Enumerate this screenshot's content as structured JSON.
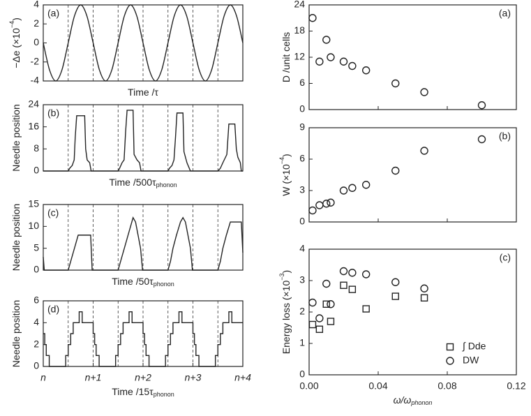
{
  "chart_data": [
    {
      "type": "line",
      "label": "(a)",
      "smooth": true,
      "xlabel": [
        "Time /τ"
      ],
      "ylabel": [
        "−Δe (×10",
        "−4",
        ")"
      ],
      "x": [
        0,
        0.125,
        0.25,
        0.375,
        0.5,
        0.625,
        0.75,
        0.875,
        1,
        1.125,
        1.25,
        1.375,
        1.5,
        1.625,
        1.75,
        1.875,
        2,
        2.125,
        2.25,
        2.375,
        2.5,
        2.625,
        2.75,
        2.875,
        3,
        3.125,
        3.25,
        3.375,
        3.5,
        3.625,
        3.75,
        3.875,
        4
      ],
      "values": [
        0,
        -2.83,
        -4,
        -2.83,
        0,
        2.83,
        4,
        2.83,
        0,
        -2.83,
        -4,
        -2.83,
        0,
        2.83,
        4,
        2.83,
        0,
        -2.83,
        -4,
        -2.83,
        0,
        2.83,
        4,
        2.83,
        0,
        -2.83,
        -4,
        -2.83,
        0,
        2.83,
        4,
        2.83,
        0
      ],
      "xlim": [
        0,
        4
      ],
      "ylim": [
        -4,
        4
      ],
      "yticks": [
        -4,
        -2,
        0,
        2,
        4
      ],
      "vlines": [
        0.5,
        1,
        1.5,
        2,
        2.5,
        3,
        3.5
      ],
      "color": "#222222"
    },
    {
      "type": "line",
      "label": "(b)",
      "xlabel": [
        "Time /500τ",
        "phonon"
      ],
      "ylabel": [
        "Needle position"
      ],
      "x": [
        0,
        0.5,
        0.53,
        0.58,
        0.62,
        0.64,
        0.67,
        0.83,
        0.85,
        0.88,
        0.93,
        0.96,
        1.5,
        1.53,
        1.58,
        1.62,
        1.65,
        1.68,
        1.8,
        1.82,
        1.88,
        1.93,
        1.96,
        2.5,
        2.53,
        2.58,
        2.62,
        2.65,
        2.68,
        2.8,
        2.82,
        2.88,
        2.95,
        3.5,
        3.55,
        3.6,
        3.68,
        3.72,
        3.84,
        3.87,
        3.9,
        3.95,
        3.97,
        4
      ],
      "values": [
        0,
        0,
        1,
        2,
        4,
        12,
        20,
        20,
        8,
        4,
        3,
        0,
        0,
        1,
        3,
        4,
        14,
        22,
        22,
        6,
        4,
        3,
        0,
        0,
        1,
        2,
        4,
        12,
        21,
        21,
        7,
        3,
        0,
        0,
        1,
        3,
        6,
        17,
        17,
        8,
        5,
        3,
        0,
        0
      ],
      "xlim": [
        0,
        4
      ],
      "ylim": [
        0,
        24
      ],
      "yticks": [
        0,
        8,
        16,
        24
      ],
      "vlines": [
        0.5,
        1,
        1.5,
        2,
        2.5,
        3,
        3.5
      ],
      "color": "#222222"
    },
    {
      "type": "line",
      "label": "(c)",
      "xlabel": [
        "Time /50τ",
        "phonon"
      ],
      "ylabel": [
        "Needle position"
      ],
      "x": [
        0,
        0.02,
        0.5,
        0.55,
        0.6,
        0.65,
        0.7,
        0.95,
        0.98,
        1.5,
        1.55,
        1.6,
        1.65,
        1.7,
        1.75,
        1.8,
        1.85,
        1.9,
        1.95,
        1.99,
        2.5,
        2.55,
        2.6,
        2.67,
        2.75,
        2.8,
        2.85,
        2.9,
        2.95,
        2.99,
        3.5,
        3.55,
        3.6,
        3.67,
        3.75,
        3.8,
        3.97,
        4
      ],
      "values": [
        3,
        0,
        0,
        2,
        4,
        6,
        8,
        8,
        0,
        0,
        2,
        4,
        6,
        8,
        10,
        12,
        11,
        8,
        5,
        0,
        0,
        2,
        5,
        8,
        11,
        12,
        11,
        8,
        5,
        0,
        0,
        2,
        5,
        8,
        11,
        11,
        11,
        4
      ],
      "xlim": [
        0,
        4
      ],
      "ylim": [
        0,
        15
      ],
      "yticks": [
        0,
        5,
        10,
        15
      ],
      "vlines": [
        0.5,
        1,
        1.5,
        2,
        2.5,
        3,
        3.5
      ],
      "color": "#222222"
    },
    {
      "type": "line",
      "label": "(d)",
      "step": true,
      "xlabel": [
        "Time /15τ",
        "phonon"
      ],
      "ylabel": [
        "Needle position"
      ],
      "x": [
        0,
        0.03,
        0.06,
        0.12,
        0.45,
        0.5,
        0.55,
        0.6,
        0.72,
        0.78,
        1,
        1.03,
        1.06,
        1.12,
        1.45,
        1.5,
        1.55,
        1.6,
        1.72,
        1.78,
        2,
        2.03,
        2.06,
        2.12,
        2.45,
        2.5,
        2.55,
        2.6,
        2.72,
        2.78,
        3,
        3.03,
        3.06,
        3.12,
        3.45,
        3.5,
        3.55,
        3.6,
        3.72,
        3.78,
        4
      ],
      "values": [
        3,
        2,
        1,
        0,
        1,
        2,
        3,
        4,
        5,
        4,
        3,
        2,
        1,
        0,
        1,
        2,
        3,
        4,
        5,
        4,
        3,
        2,
        1,
        0,
        1,
        2,
        3,
        4,
        5,
        4,
        3,
        2,
        1,
        0,
        1,
        2,
        3,
        4,
        5,
        4,
        4
      ],
      "xlim": [
        0,
        4
      ],
      "ylim": [
        0,
        6
      ],
      "yticks": [
        0,
        2,
        4,
        6
      ],
      "xticks": [
        {
          "value": 0,
          "label": "n"
        },
        {
          "value": 1,
          "label": "n+1"
        },
        {
          "value": 2,
          "label": "n+2"
        },
        {
          "value": 3,
          "label": "n+3"
        },
        {
          "value": 4,
          "label": "n+4"
        }
      ],
      "vlines": [
        0.5,
        1,
        1.5,
        2,
        2.5,
        3,
        3.5
      ],
      "color": "#222222"
    },
    {
      "type": "scatter",
      "label": "(a)",
      "marker": "circle",
      "ylabel": [
        "D /unit cells"
      ],
      "x": [
        0.002,
        0.006,
        0.01,
        0.0125,
        0.02,
        0.025,
        0.033,
        0.05,
        0.0667,
        0.1
      ],
      "values": [
        21,
        11,
        16,
        12,
        11,
        10,
        9,
        6,
        4,
        1
      ],
      "xlim": [
        0,
        0.12
      ],
      "xticks": [
        {
          "value": 0,
          "label": "0.00"
        },
        {
          "value": 0.04,
          "label": "0.04"
        },
        {
          "value": 0.08,
          "label": "0.08"
        },
        {
          "value": 0.12,
          "label": "0.12"
        }
      ],
      "xticklabels": false,
      "ylim": [
        0,
        24
      ],
      "yticks": [
        0,
        6,
        12,
        18,
        24
      ],
      "color": "#222222"
    },
    {
      "type": "scatter",
      "label": "(b)",
      "marker": "circle",
      "ylabel": [
        "W (×10",
        "−4",
        ")"
      ],
      "x": [
        0.002,
        0.006,
        0.01,
        0.0125,
        0.02,
        0.025,
        0.033,
        0.05,
        0.0667,
        0.1
      ],
      "values": [
        1.1,
        1.6,
        1.75,
        1.85,
        3.0,
        3.25,
        3.55,
        4.9,
        6.8,
        7.9
      ],
      "xlim": [
        0,
        0.12
      ],
      "xticks": [
        {
          "value": 0,
          "label": "0.00"
        },
        {
          "value": 0.04,
          "label": "0.04"
        },
        {
          "value": 0.08,
          "label": "0.08"
        },
        {
          "value": 0.12,
          "label": "0.12"
        }
      ],
      "xticklabels": false,
      "ylim": [
        0,
        9
      ],
      "yticks": [
        0,
        3,
        6,
        9
      ],
      "color": "#222222"
    },
    {
      "type": "scatter",
      "label": "(c)",
      "ylabel": [
        "Energy loss (×10",
        "−3",
        ")"
      ],
      "xlabel": [
        "ω/ω",
        "phonon"
      ],
      "x": [
        0.002,
        0.006,
        0.01,
        0.0125,
        0.02,
        0.025,
        0.033,
        0.05,
        0.0667
      ],
      "series": [
        {
          "name": "∫ Dde",
          "marker": "square",
          "color": "#222222",
          "values": [
            1.6,
            1.45,
            2.25,
            1.7,
            2.85,
            2.72,
            2.1,
            2.5,
            2.45
          ]
        },
        {
          "name": "DW",
          "marker": "circle",
          "color": "#222222",
          "values": [
            2.3,
            1.8,
            2.9,
            2.25,
            3.3,
            3.25,
            3.2,
            2.95,
            2.75
          ]
        }
      ],
      "legend": "lower right",
      "xlim": [
        0,
        0.12
      ],
      "xticks": [
        {
          "value": 0,
          "label": "0.00"
        },
        {
          "value": 0.04,
          "label": "0.04"
        },
        {
          "value": 0.08,
          "label": "0.08"
        },
        {
          "value": 0.12,
          "label": "0.12"
        }
      ],
      "xticklabels": true,
      "ylim": [
        0,
        4
      ],
      "yticks": [
        0,
        1,
        2,
        3,
        4
      ]
    }
  ]
}
